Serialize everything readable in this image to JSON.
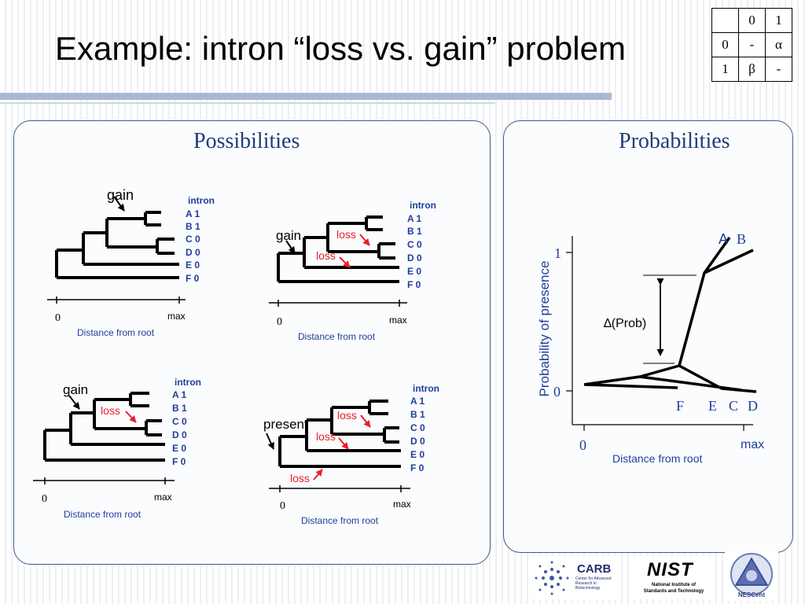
{
  "slide": {
    "title": "Example: intron “loss vs. gain” problem"
  },
  "matrix": {
    "col_headers": [
      "0",
      "1"
    ],
    "rows": [
      {
        "label": "0",
        "cells": [
          "-",
          "α"
        ]
      },
      {
        "label": "1",
        "cells": [
          "β",
          "-"
        ]
      }
    ]
  },
  "possibilities": {
    "title": "Possibilities",
    "intron_header": "intron",
    "species": [
      "A 1",
      "B 1",
      "C 0",
      "D 0",
      "E 0",
      "F 0"
    ],
    "gain_label": "gain",
    "loss_label": "loss",
    "present_label": "present",
    "axis_zero": "0",
    "axis_max": "max",
    "axis_caption": "Distance from root"
  },
  "probabilities": {
    "title": "Probabilities",
    "ylabel": "Probability of presence",
    "y_top": "1",
    "y_bottom": "0",
    "x_zero": "0",
    "x_max": "max",
    "xlabel": "Distance from root",
    "delta_label": "∆(Prob)",
    "leaf_A": "A",
    "leaf_B": "B",
    "leaf_F": "F",
    "leaf_E": "E",
    "leaf_C": "C",
    "leaf_D": "D"
  },
  "logos": {
    "carb_name": "CARB",
    "carb_sub": "Center for Advanced Research in Biotechnology",
    "nist_name": "NIST",
    "nist_sub": "National Institute of Standards and Technology",
    "nescent_name": "NESCent"
  },
  "colors": {
    "title_blue": "#1f3e78",
    "label_blue": "#1f3e9c",
    "loss_red": "#e8202a"
  }
}
